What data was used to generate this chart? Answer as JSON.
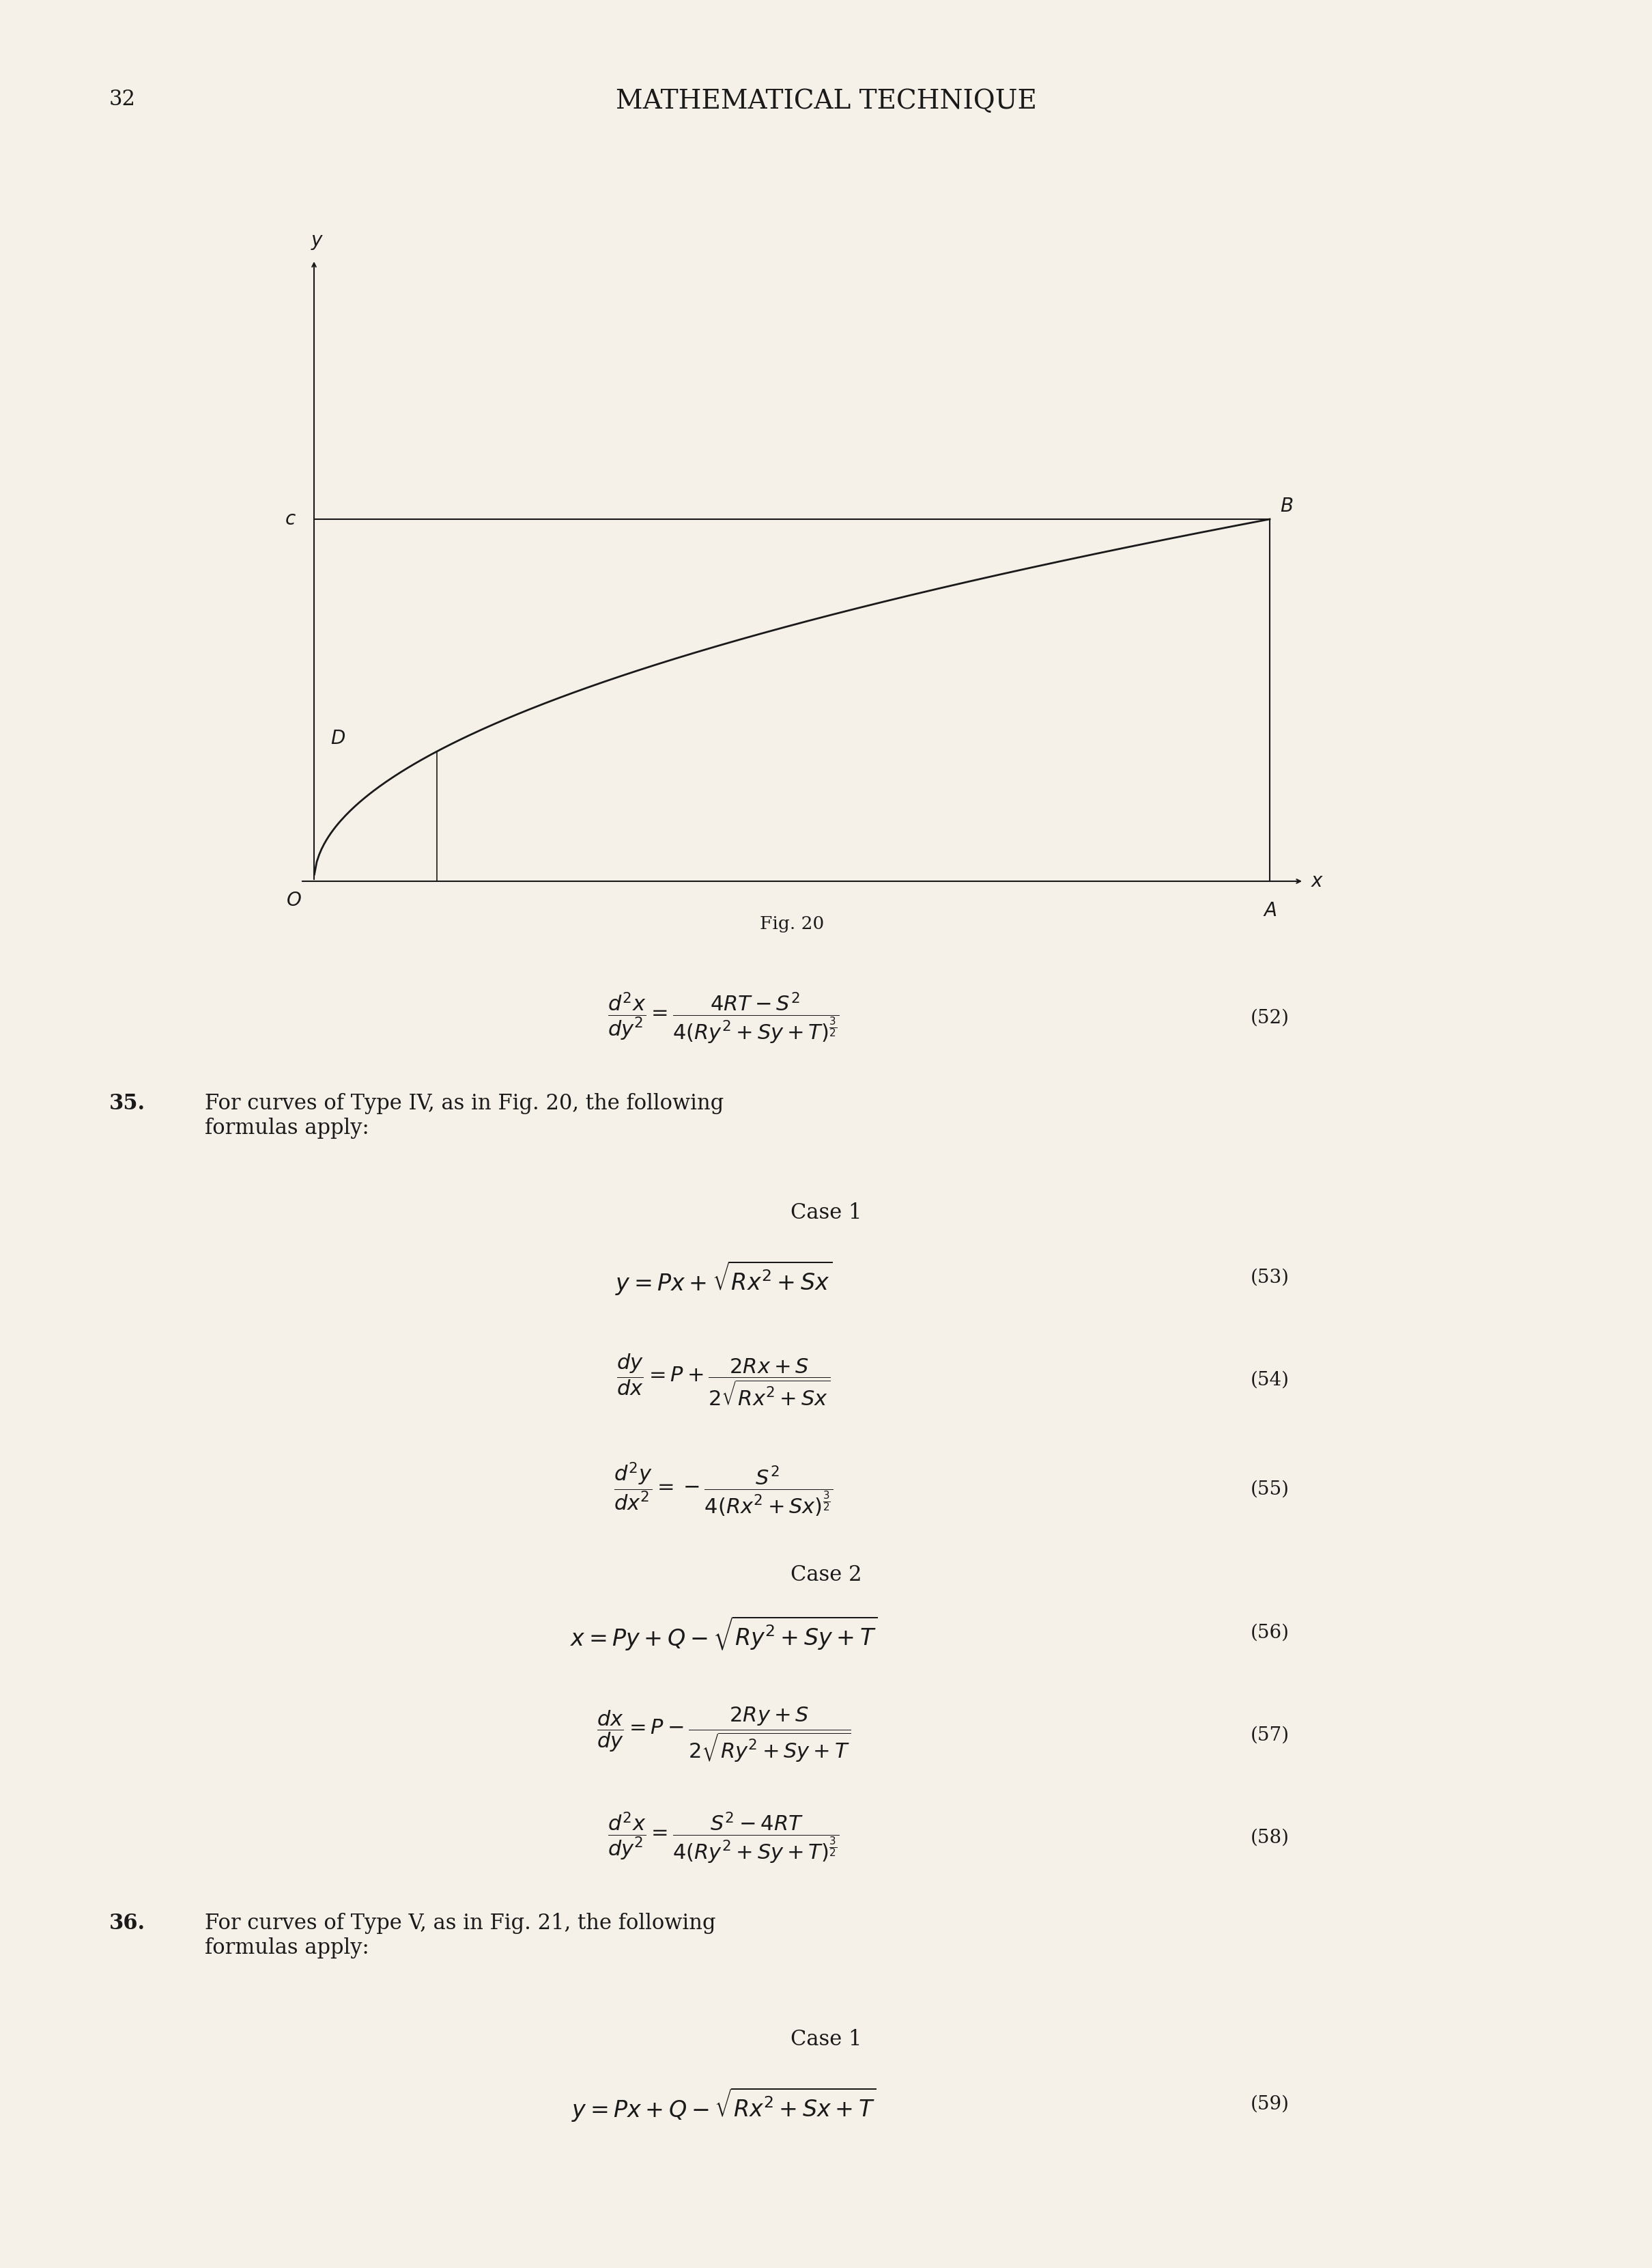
{
  "page_number": "32",
  "header": "MATHEMATICAL TECHNIQUE",
  "bg_color": "#f5f0e8",
  "text_color": "#1a1a1a",
  "fig_caption": "Fig. 20",
  "section35_text": "35.  For curves of Type IV, as in Fig. 20, the following\nformulas apply:",
  "section36_text": "36.  For curves of Type V, as in Fig. 21, the following\nformulas apply:",
  "case1_label": "Case 1",
  "case2_label": "Case 2"
}
